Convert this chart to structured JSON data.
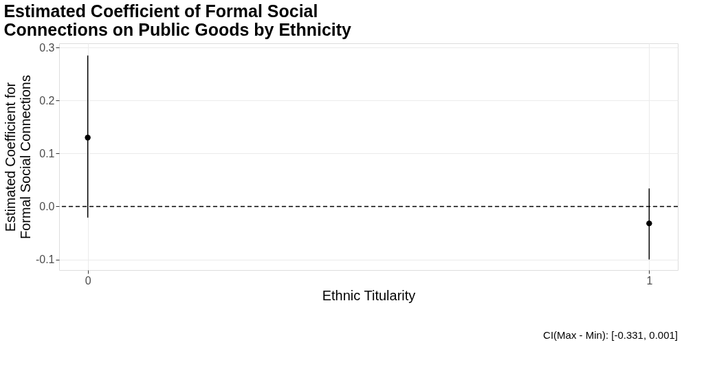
{
  "chart_data": {
    "type": "scatter",
    "title": [
      "Estimated Coefficient of Formal Social",
      "Connections on Public Goods by Ethnicity"
    ],
    "xlabel": "Ethnic Titularity",
    "ylabel": [
      "Estimated Coefficient for",
      "Formal Social Connections"
    ],
    "x": [
      0,
      1
    ],
    "series": [
      {
        "color": "#000000",
        "values": [
          0.13,
          -0.032
        ],
        "errors": [
          [
            -0.021,
            0.285
          ],
          [
            -0.1,
            0.034
          ]
        ]
      }
    ],
    "xlim": [
      -0.051,
      1.051
    ],
    "xticks": [
      0,
      1
    ],
    "ylim": [
      -0.12,
      0.308
    ],
    "yticks": [
      {
        "value": -0.1,
        "label": "-0.1"
      },
      {
        "value": 0,
        "label": "0.0"
      },
      {
        "value": 0.1,
        "label": "0.1"
      },
      {
        "value": 0.2,
        "label": "0.2"
      },
      {
        "value": 0.3,
        "label": "0.3"
      }
    ],
    "ref_lines": [
      {
        "axis": "y",
        "value": 0,
        "line_style": "dashed",
        "color": "#000000"
      }
    ],
    "annotations": [
      "CI(Max - Min): [-0.331, 0.001]"
    ],
    "grid": true,
    "marker": "circle"
  }
}
